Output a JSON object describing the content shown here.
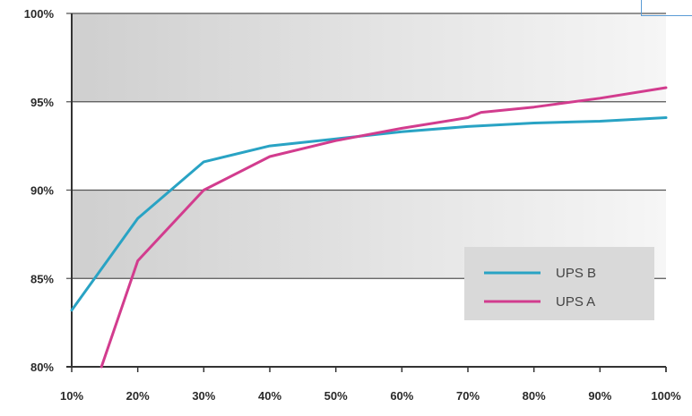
{
  "chart_data": {
    "type": "line",
    "title": "",
    "xlabel": "",
    "ylabel": "",
    "x": [
      10,
      20,
      30,
      40,
      50,
      60,
      70,
      80,
      90,
      100
    ],
    "x_tick_labels": [
      "10%",
      "20%",
      "30%",
      "40%",
      "50%",
      "60%",
      "70%",
      "80%",
      "90%",
      "100%"
    ],
    "y_tick_labels": [
      "80%",
      "85%",
      "90%",
      "95%",
      "100%"
    ],
    "y_ticks": [
      80,
      85,
      90,
      95,
      100
    ],
    "xlim": [
      10,
      100
    ],
    "ylim": [
      80,
      100
    ],
    "grid": "horizontal",
    "legend_position": "bottom-right",
    "series": [
      {
        "name": "UPS B",
        "color": "#29a3c4",
        "x": [
          10,
          20,
          30,
          40,
          50,
          60,
          70,
          80,
          90,
          100
        ],
        "values": [
          83.2,
          88.4,
          91.6,
          92.5,
          92.9,
          93.3,
          93.6,
          93.8,
          93.9,
          94.1
        ]
      },
      {
        "name": "UPS A",
        "color": "#d23c8e",
        "x": [
          14.5,
          20,
          30,
          40,
          50,
          60,
          70,
          72,
          80,
          90,
          100
        ],
        "values": [
          80,
          86,
          90,
          91.9,
          92.8,
          93.5,
          94.1,
          94.4,
          94.7,
          95.2,
          95.8
        ]
      }
    ],
    "bands": [
      {
        "from": 95,
        "to": 100,
        "color": "#d4d4d4"
      },
      {
        "from": 85,
        "to": 90,
        "color": "#d4d4d4"
      }
    ]
  }
}
